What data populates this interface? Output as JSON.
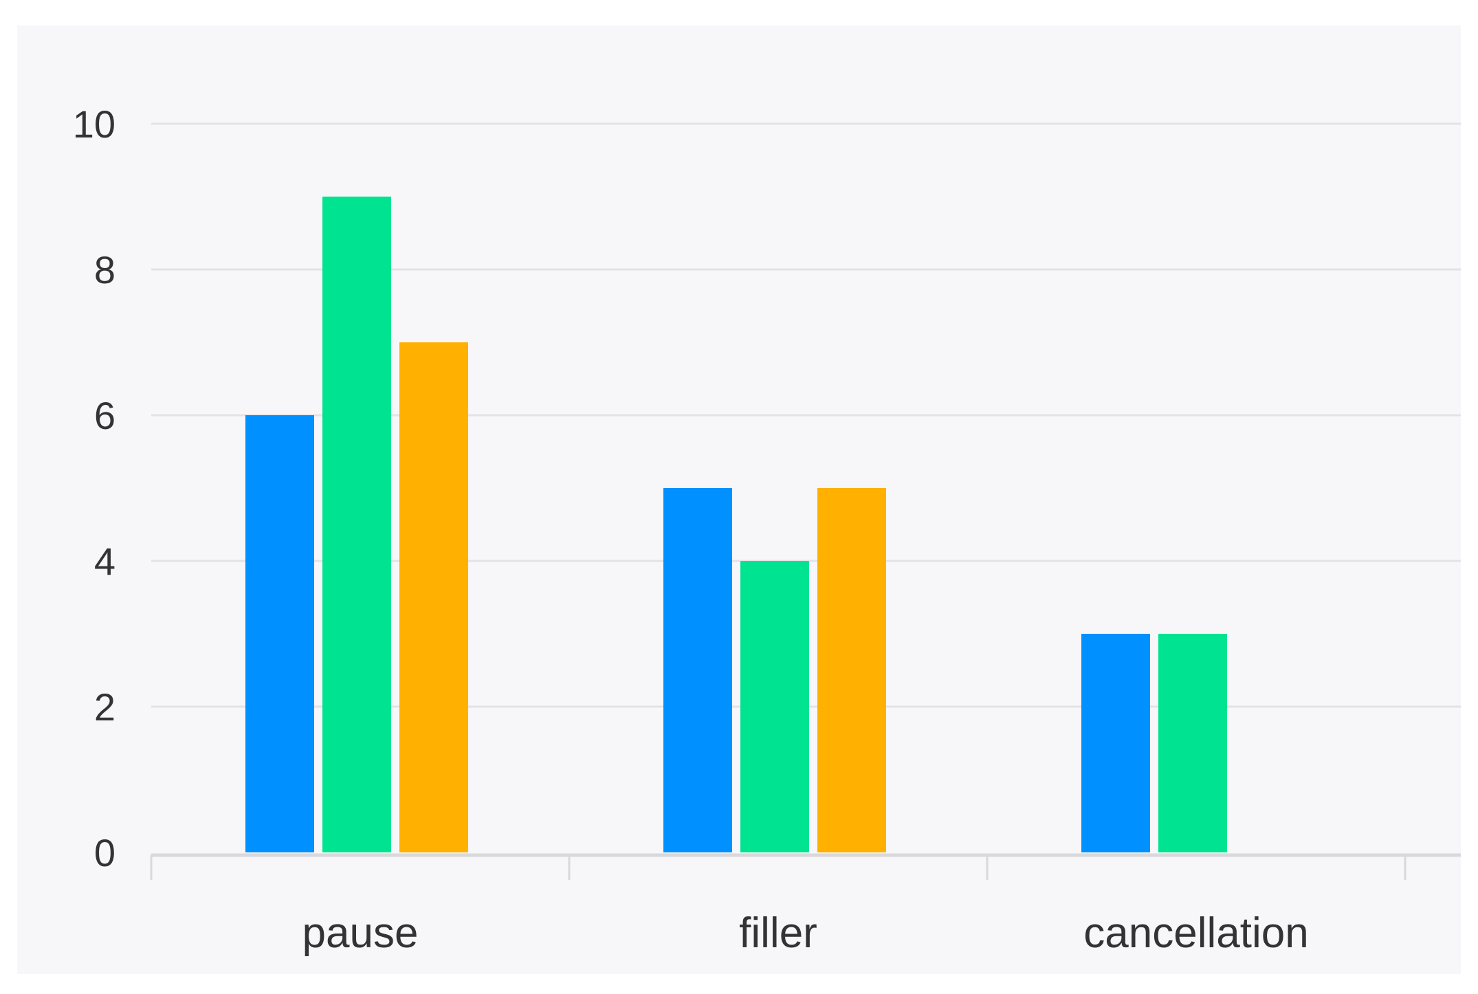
{
  "chart_data": {
    "type": "bar",
    "categories": [
      "pause",
      "filler",
      "cancellation"
    ],
    "series": [
      {
        "values": [
          6,
          5,
          3
        ],
        "color": "#0090ff"
      },
      {
        "values": [
          9,
          4,
          3
        ],
        "color": "#00e390"
      },
      {
        "values": [
          7,
          5,
          0
        ],
        "color": "#ffb000"
      }
    ],
    "y_ticks": [
      "0",
      "2",
      "4",
      "6",
      "8",
      "10"
    ],
    "ylim": [
      0,
      10
    ],
    "grid": true,
    "legend": "none",
    "title": "",
    "xlabel": "",
    "ylabel": ""
  },
  "colors": {
    "background": "#f7f7f9",
    "gridline": "#e3e3e6",
    "axis": "#d9d9dc",
    "text": "#333333"
  }
}
